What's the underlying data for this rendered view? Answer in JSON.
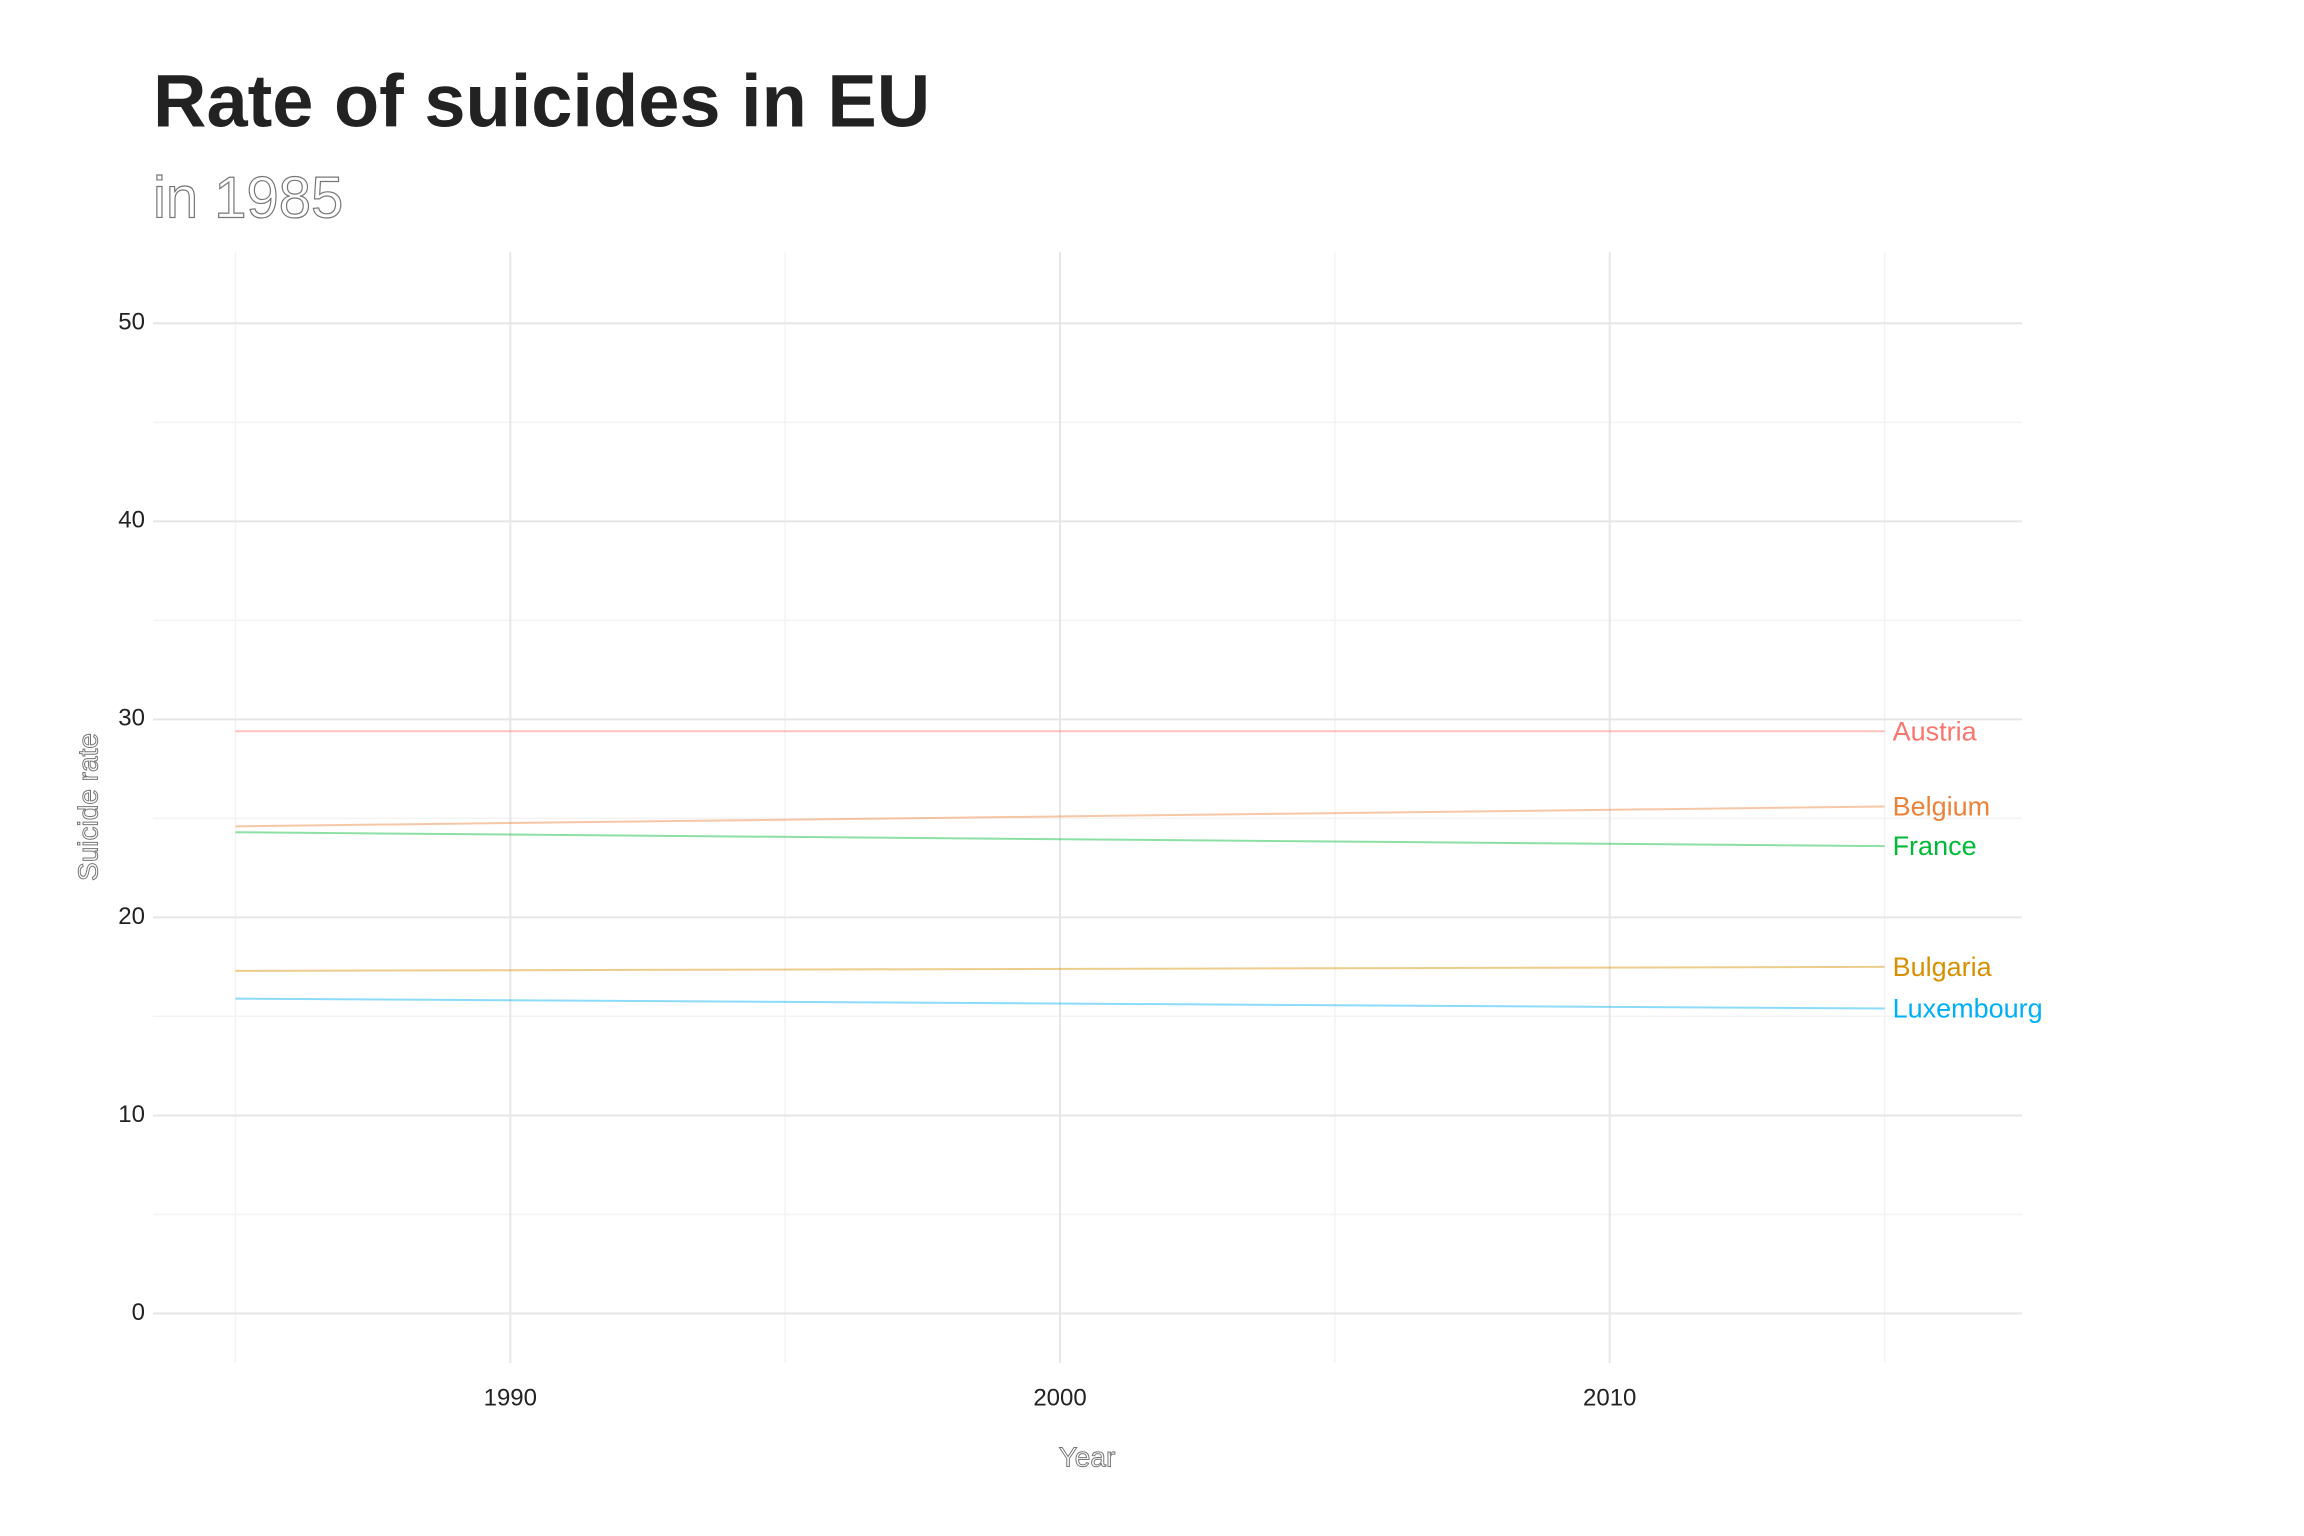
{
  "chart_data": {
    "type": "line",
    "title": "Rate of suicides in EU",
    "subtitle": "in 1985",
    "x_label": "Year",
    "y_label": "Suicide rate",
    "x": [
      1985,
      2015
    ],
    "series": [
      {
        "name": "Austria",
        "color": "#F8766D",
        "values": [
          29.4,
          29.4
        ]
      },
      {
        "name": "Belgium",
        "color": "#EC8239",
        "values": [
          24.6,
          25.6
        ]
      },
      {
        "name": "France",
        "color": "#00BA38",
        "values": [
          24.3,
          23.6
        ]
      },
      {
        "name": "Bulgaria",
        "color": "#D89000",
        "values": [
          17.3,
          17.5
        ]
      },
      {
        "name": "Luxembourg",
        "color": "#00B0F6",
        "values": [
          15.9,
          15.4
        ]
      }
    ],
    "xlim": [
      1983.5,
      2017.5
    ],
    "ylim": [
      -2.5,
      53.6
    ],
    "xticks": [
      1990,
      2000,
      2010
    ],
    "yticks": [
      0,
      10,
      20,
      30,
      40,
      50
    ],
    "x_minor_ticks": [
      1985,
      1995,
      2005,
      2015
    ],
    "y_minor_ticks": [
      5,
      15,
      25,
      35,
      45
    ],
    "grid": true
  }
}
